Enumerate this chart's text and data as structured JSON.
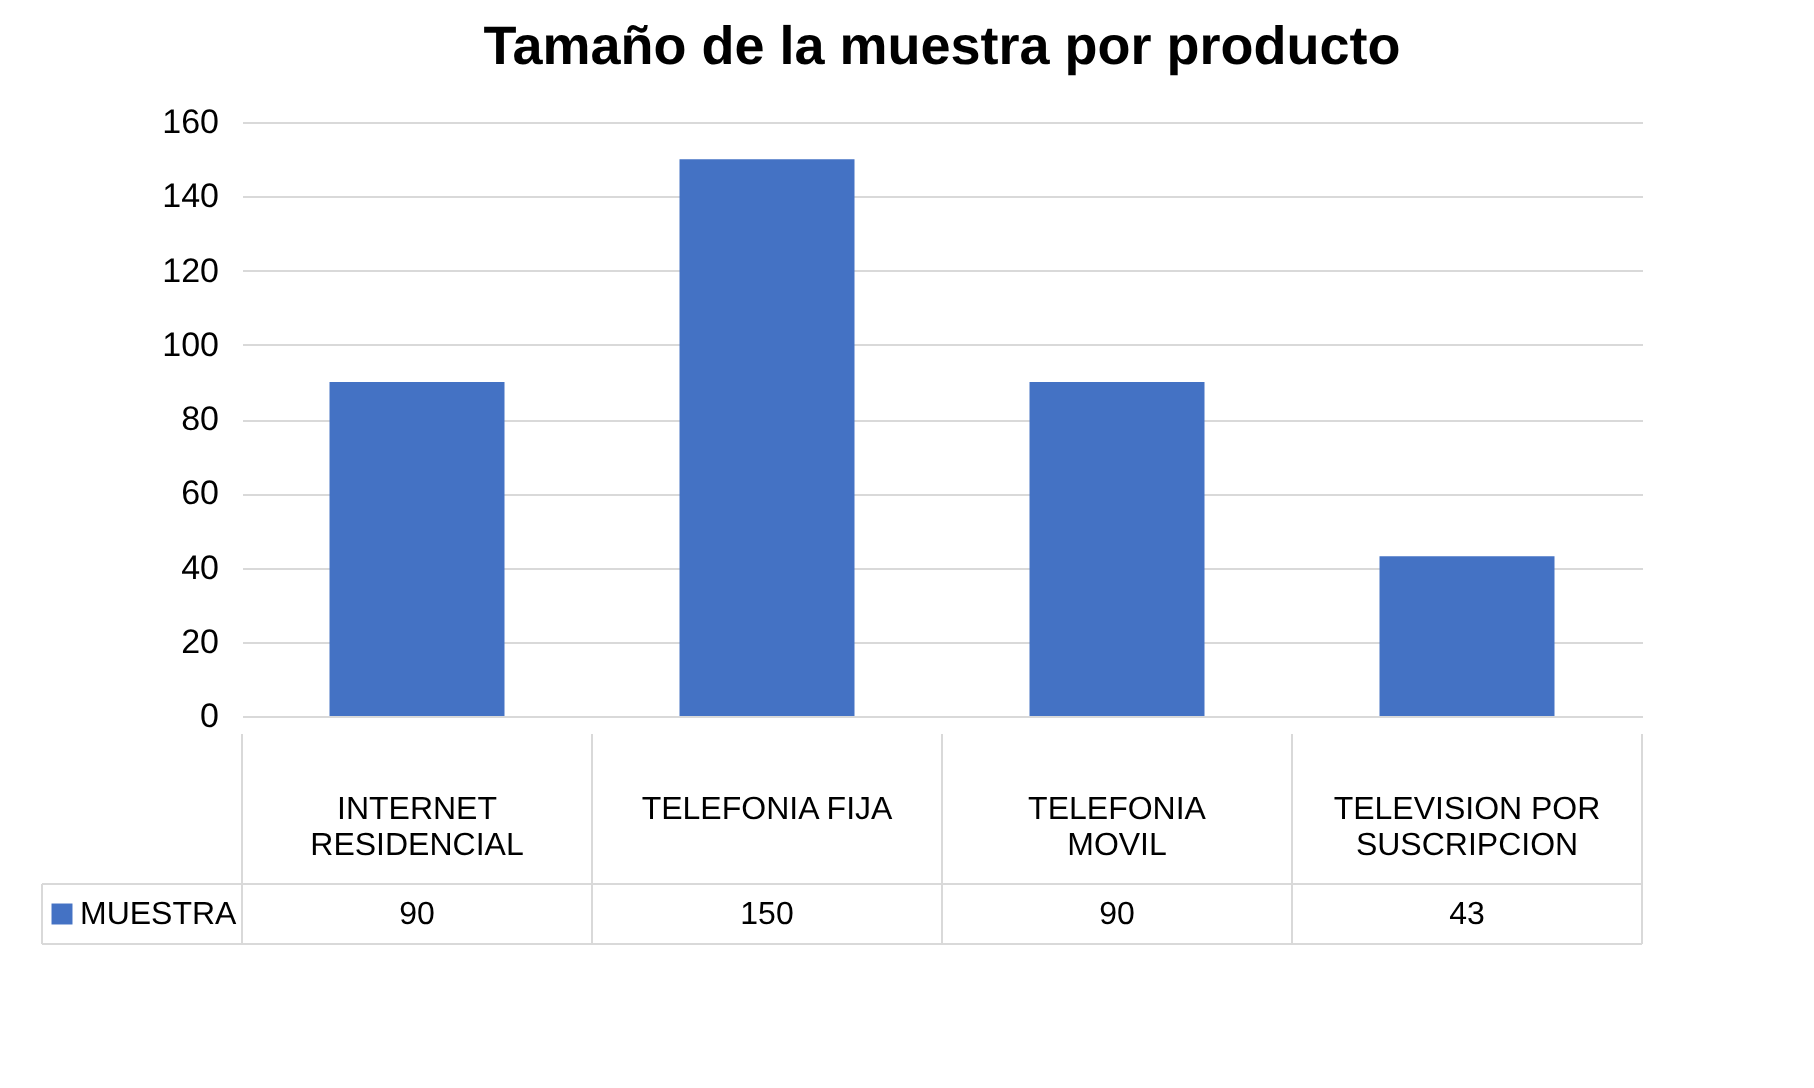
{
  "chart_data": {
    "type": "bar",
    "title": "Tamaño de la muestra por producto",
    "categories": [
      "INTERNET RESIDENCIAL",
      "TELEFONIA FIJA",
      "TELEFONIA MOVIL",
      "TELEVISION POR SUSCRIPCION"
    ],
    "series": [
      {
        "name": "MUESTRA",
        "color": "#4472c4",
        "values": [
          90,
          150,
          90,
          43
        ]
      }
    ],
    "ylim": [
      0,
      160
    ],
    "yticks": [
      0,
      20,
      40,
      60,
      80,
      100,
      120,
      140,
      160
    ],
    "grid": "y",
    "legend": "bottom",
    "data_labels": true
  }
}
